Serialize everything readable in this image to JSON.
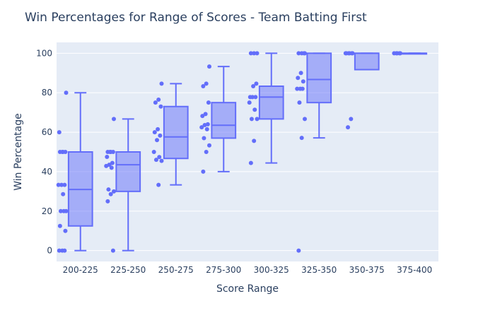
{
  "chart_data": {
    "type": "box",
    "title": "Win Percentages for Range of Scores - Team Batting First",
    "xlabel": "Score Range",
    "ylabel": "Win Percentage",
    "categories": [
      "200-225",
      "225-250",
      "250-275",
      "275-300",
      "300-325",
      "325-350",
      "350-375",
      "375-400"
    ],
    "ylim": [
      -5.5,
      105.5
    ],
    "yticks": [
      0,
      20,
      40,
      60,
      80,
      100
    ],
    "grid": true,
    "legend": "none",
    "colors": {
      "plot_bg": "#e5ecf6",
      "grid": "#ffffff",
      "box_line": "#636efa",
      "box_fill": "rgba(99,110,250,0.5)",
      "point": "#636efa",
      "text": "#2a3f5f"
    },
    "boxes": [
      {
        "category": "200-225",
        "min": 0,
        "q1": 12.5,
        "median": 31,
        "q3": 50,
        "max": 80,
        "points": [
          80,
          50,
          50,
          50,
          50,
          60,
          33.3,
          33.3,
          33.3,
          20,
          20,
          20,
          28.6,
          12.5,
          10,
          0,
          0,
          0
        ]
      },
      {
        "category": "225-250",
        "min": 0,
        "q1": 30,
        "median": 43.5,
        "q3": 50,
        "max": 66.7,
        "points": [
          66.7,
          50,
          50,
          50,
          50,
          47.5,
          44.4,
          43.5,
          42.9,
          42,
          31,
          30,
          28.6,
          25,
          0
        ]
      },
      {
        "category": "250-275",
        "min": 33.3,
        "q1": 46.7,
        "median": 57.6,
        "q3": 73,
        "max": 84.6,
        "points": [
          84.6,
          76.5,
          75,
          73,
          61.5,
          60,
          58.3,
          56,
          50,
          47.4,
          46,
          45.5,
          33.3
        ]
      },
      {
        "category": "275-300",
        "min": 40,
        "q1": 57,
        "median": 63.5,
        "q3": 75,
        "max": 93.3,
        "points": [
          93.3,
          84.6,
          83.3,
          75,
          69.2,
          68.2,
          64,
          63.6,
          62.5,
          61.5,
          57,
          53.3,
          50,
          40
        ]
      },
      {
        "category": "300-325",
        "min": 44.4,
        "q1": 66.7,
        "median": 77.8,
        "q3": 83.3,
        "max": 100,
        "points": [
          100,
          100,
          100,
          84.6,
          83.3,
          77.8,
          77.8,
          77.8,
          75,
          71.4,
          66.7,
          66.7,
          55.6,
          44.4
        ]
      },
      {
        "category": "325-350",
        "min": 57.1,
        "q1": 75,
        "median": 86.7,
        "q3": 100,
        "max": 100,
        "points": [
          100,
          100,
          100,
          100,
          90,
          87.5,
          85.7,
          82,
          82,
          82,
          75,
          66.7,
          57.1,
          0
        ]
      },
      {
        "category": "350-375",
        "min": 91.7,
        "q1": 91.7,
        "median": 100,
        "q3": 100,
        "max": 100,
        "points": [
          100,
          100,
          100,
          100,
          100,
          100,
          66.7,
          62.5
        ]
      },
      {
        "category": "375-400",
        "min": 100,
        "q1": 100,
        "median": 100,
        "q3": 100,
        "max": 100,
        "points": [
          100,
          100,
          100,
          100,
          100
        ]
      }
    ]
  }
}
